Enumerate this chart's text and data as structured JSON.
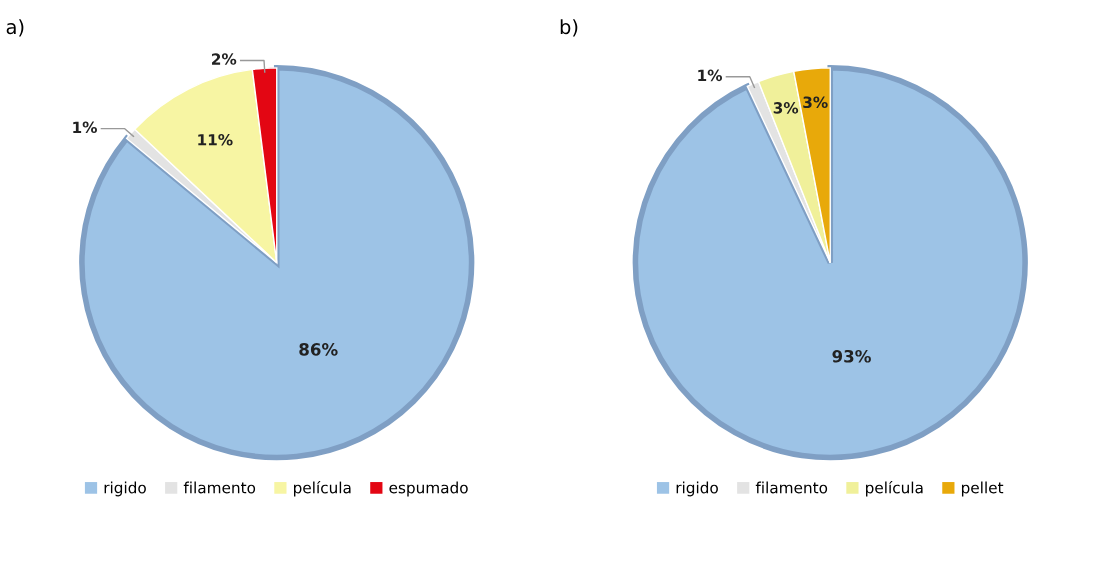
{
  "chart_data": [
    {
      "type": "pie",
      "title": "a)",
      "categories": [
        "rigido",
        "filamento",
        "película",
        "espumado"
      ],
      "values": [
        86,
        1,
        11,
        2
      ],
      "colors": [
        "#9dc3e6",
        "#e3e3e3",
        "#f7f5a3",
        "#e30613"
      ],
      "value_labels": [
        "86%",
        "1%",
        "11%",
        "2%"
      ],
      "legend": "bottom"
    },
    {
      "type": "pie",
      "title": "b)",
      "categories": [
        "rigido",
        "filamento",
        "película",
        "pellet"
      ],
      "values": [
        93,
        1,
        3,
        3
      ],
      "colors": [
        "#9dc3e6",
        "#e3e3e3",
        "#f0f09a",
        "#e8a90a"
      ],
      "value_labels": [
        "93%",
        "1%",
        "3%",
        "3%"
      ],
      "legend": "bottom"
    }
  ]
}
